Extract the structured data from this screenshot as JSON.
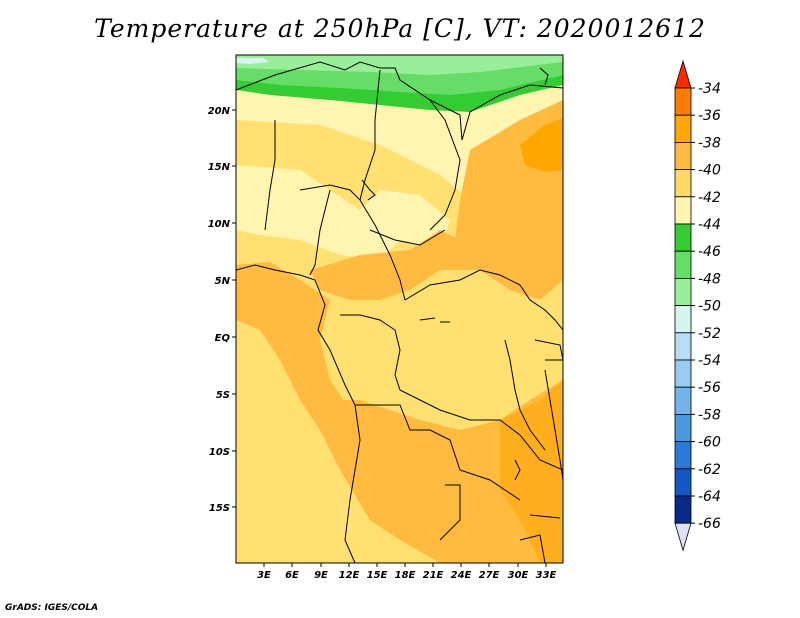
{
  "title": "Temperature at 250hPa [C], VT: 2020012612",
  "credit": "GrADS: IGES/COLA",
  "map": {
    "lat_labels": [
      "20N",
      "15N",
      "10N",
      "5N",
      "EQ",
      "5S",
      "10S",
      "15S"
    ],
    "lon_labels": [
      "3E",
      "6E",
      "9E",
      "12E",
      "15E",
      "18E",
      "21E",
      "24E",
      "27E",
      "30E",
      "33E"
    ]
  },
  "legend": {
    "labels": [
      "-34",
      "-36",
      "-38",
      "-40",
      "-42",
      "-44",
      "-46",
      "-48",
      "-50",
      "-52",
      "-54",
      "-56",
      "-58",
      "-60",
      "-62",
      "-64",
      "-66"
    ],
    "colors": [
      "#ff2a00",
      "#ff7c00",
      "#ffa600",
      "#ffbb40",
      "#ffd966",
      "#fff5b0",
      "#33cc33",
      "#66dd66",
      "#99ee99",
      "#d6f5f0",
      "#b8dcf5",
      "#9accf0",
      "#74b4ea",
      "#4a98e0",
      "#2a7ad6",
      "#1456c2",
      "#0a2a8a",
      "#0b0d6a",
      "#e0e0f5"
    ]
  },
  "colors": {
    "yellow_pale": "#fff5b0",
    "yellow": "#ffe070",
    "orange_light": "#ffbb40",
    "orange": "#ffa600",
    "green": "#33cc33",
    "green_light": "#66dd66",
    "green_pale": "#99ee99",
    "cyan_pale": "#d6f5f0"
  }
}
